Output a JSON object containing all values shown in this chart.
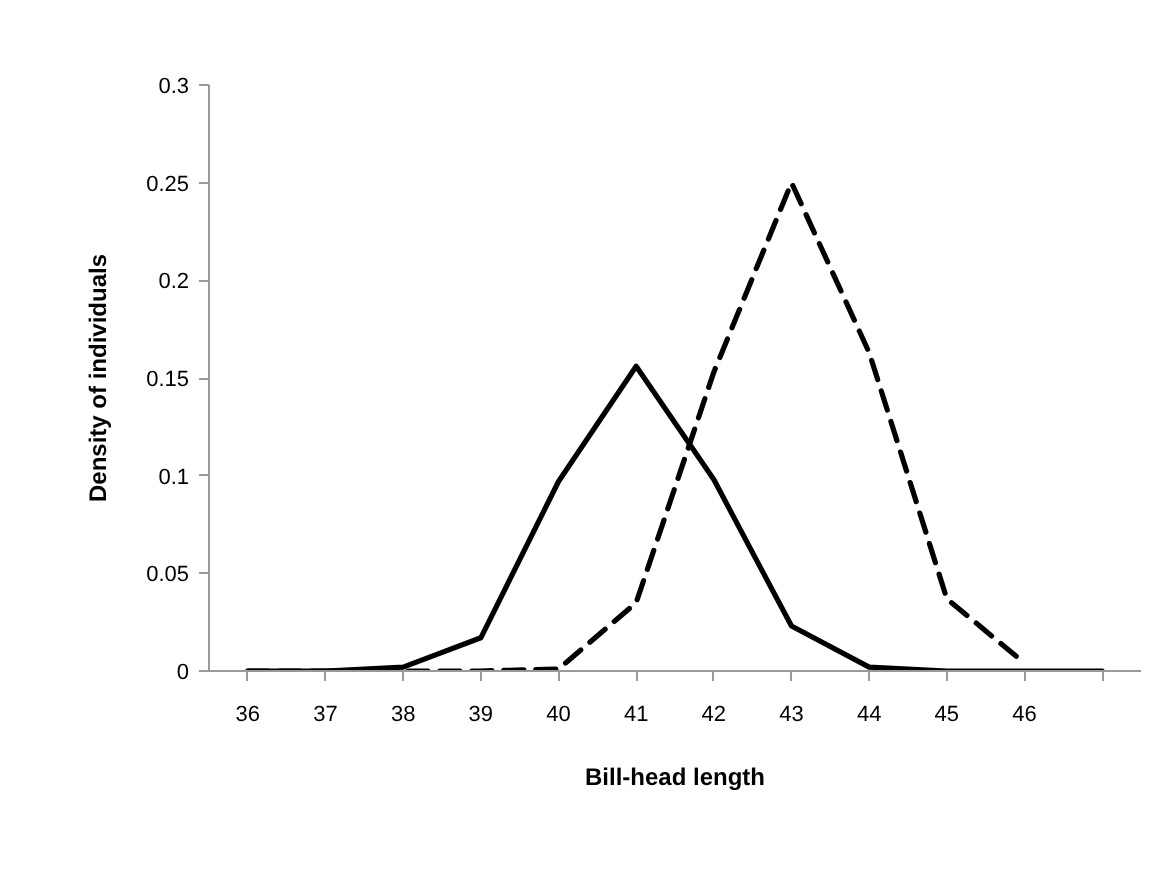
{
  "chart_data": {
    "type": "line",
    "xlabel": "Bill-head length",
    "ylabel": "Density of individuals",
    "categories": [
      "36",
      "37",
      "38",
      "39",
      "40",
      "41",
      "42",
      "43",
      "44",
      "45",
      "46",
      null
    ],
    "series": [
      {
        "color": "#000000",
        "line_style": "solid",
        "values": [
          0,
          0,
          0.002,
          0.017,
          0.097,
          0.156,
          0.098,
          0.023,
          0.002,
          0,
          0,
          0
        ]
      },
      {
        "color": "#000000",
        "line_style": "dashed",
        "values": [
          0,
          0,
          0,
          0,
          0.001,
          0.035,
          0.153,
          0.25,
          0.163,
          0.037,
          0.004,
          null
        ]
      }
    ],
    "ylim": [
      0,
      0.3
    ],
    "yticks": [
      0,
      0.05,
      0.1,
      0.15,
      0.2,
      0.25,
      0.3
    ],
    "grid": false,
    "marker": "none"
  }
}
